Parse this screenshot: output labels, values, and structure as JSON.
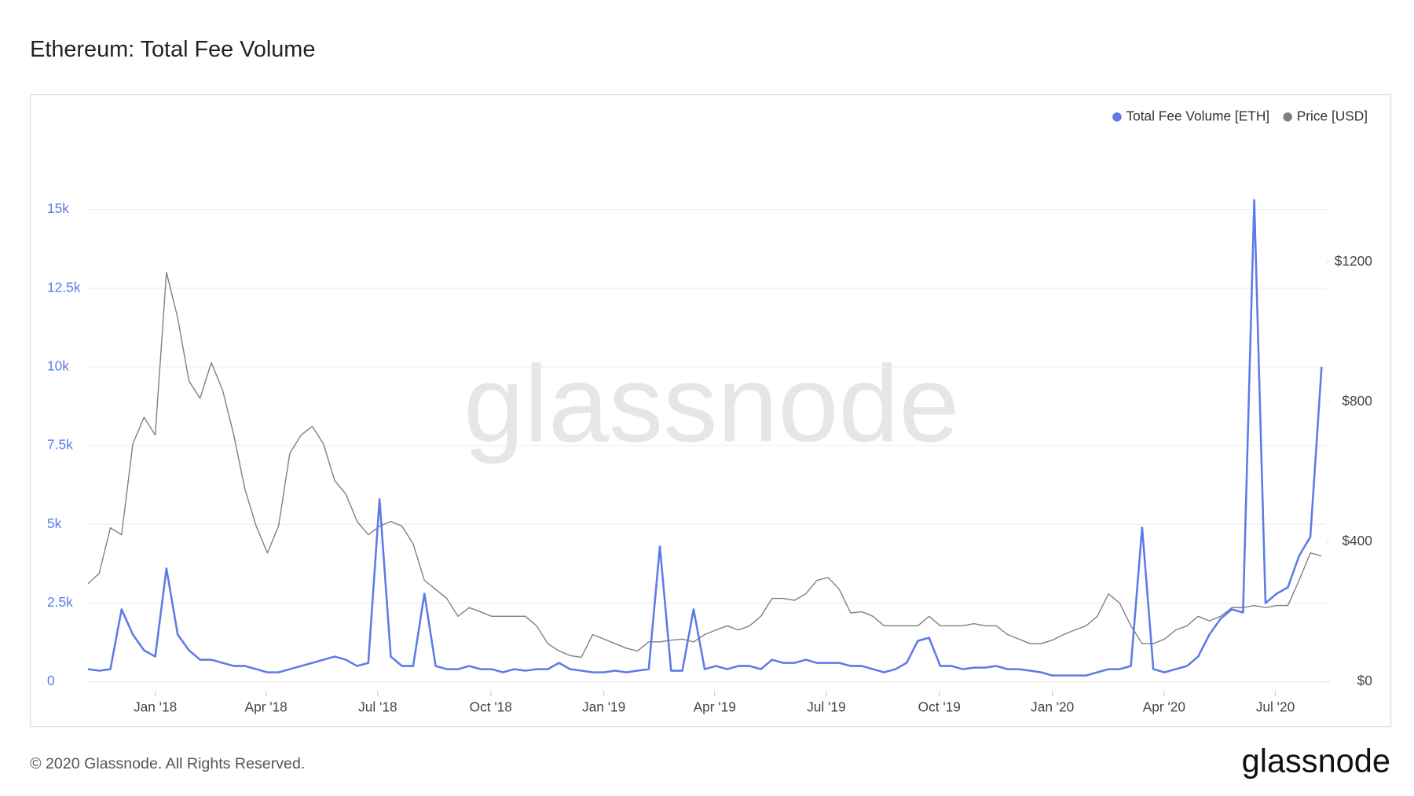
{
  "chart_data": {
    "type": "line",
    "title": "Ethereum: Total Fee Volume",
    "watermark": "glassnode",
    "footer": "© 2020 Glassnode. All Rights Reserved.",
    "brand": "glassnode",
    "legend_position": "top-right",
    "grid": true,
    "x": [
      2017.85,
      2017.875,
      2017.9,
      2017.925,
      2017.95,
      2017.975,
      2018.0,
      2018.025,
      2018.05,
      2018.075,
      2018.1,
      2018.125,
      2018.15,
      2018.175,
      2018.2,
      2018.225,
      2018.25,
      2018.275,
      2018.3,
      2018.325,
      2018.35,
      2018.375,
      2018.4,
      2018.425,
      2018.45,
      2018.475,
      2018.5,
      2018.525,
      2018.55,
      2018.575,
      2018.6,
      2018.625,
      2018.65,
      2018.675,
      2018.7,
      2018.725,
      2018.75,
      2018.775,
      2018.8,
      2018.825,
      2018.85,
      2018.875,
      2018.9,
      2018.925,
      2018.95,
      2018.975,
      2019.0,
      2019.025,
      2019.05,
      2019.075,
      2019.1,
      2019.125,
      2019.15,
      2019.175,
      2019.2,
      2019.225,
      2019.25,
      2019.275,
      2019.3,
      2019.325,
      2019.35,
      2019.375,
      2019.4,
      2019.425,
      2019.45,
      2019.475,
      2019.5,
      2019.525,
      2019.55,
      2019.575,
      2019.6,
      2019.625,
      2019.65,
      2019.675,
      2019.7,
      2019.725,
      2019.75,
      2019.775,
      2019.8,
      2019.825,
      2019.85,
      2019.875,
      2019.9,
      2019.925,
      2019.95,
      2019.975,
      2020.0,
      2020.025,
      2020.05,
      2020.075,
      2020.1,
      2020.125,
      2020.15,
      2020.175,
      2020.2,
      2020.225,
      2020.25,
      2020.275,
      2020.3,
      2020.325,
      2020.35,
      2020.375,
      2020.4,
      2020.425,
      2020.45,
      2020.475,
      2020.5,
      2020.525,
      2020.55,
      2020.575,
      2020.6
    ],
    "xlim": [
      2017.85,
      2020.61
    ],
    "xticks": [
      {
        "value": 2018.0,
        "label": "Jan '18"
      },
      {
        "value": 2018.247,
        "label": "Apr '18"
      },
      {
        "value": 2018.496,
        "label": "Jul '18"
      },
      {
        "value": 2018.748,
        "label": "Oct '18"
      },
      {
        "value": 2019.0,
        "label": "Jan '19"
      },
      {
        "value": 2019.247,
        "label": "Apr '19"
      },
      {
        "value": 2019.496,
        "label": "Jul '19"
      },
      {
        "value": 2019.748,
        "label": "Oct '19"
      },
      {
        "value": 2020.0,
        "label": "Jan '20"
      },
      {
        "value": 2020.249,
        "label": "Apr '20"
      },
      {
        "value": 2020.497,
        "label": "Jul '20"
      }
    ],
    "ylim": [
      0,
      17535
    ],
    "yticks": [
      0,
      {
        "value": 2500,
        "label": "2.5k"
      },
      {
        "value": 5000,
        "label": "5k"
      },
      {
        "value": 7500,
        "label": "7.5k"
      },
      {
        "value": 10000,
        "label": "10k"
      },
      {
        "value": 12500,
        "label": "12.5k"
      },
      {
        "value": 15000,
        "label": "15k"
      }
    ],
    "y2lim": [
      0,
      1578
    ],
    "y2ticks": [
      {
        "value": 0,
        "label": "$0"
      },
      {
        "value": 400,
        "label": "$400"
      },
      {
        "value": 800,
        "label": "$800"
      },
      {
        "value": 1200,
        "label": "$1200"
      }
    ],
    "series": [
      {
        "name": "Total Fee Volume [ETH]",
        "color": "#5b7be6",
        "axis": "y",
        "values": [
          400,
          350,
          400,
          2300,
          1500,
          1000,
          800,
          3600,
          1500,
          1000,
          700,
          700,
          600,
          500,
          500,
          400,
          300,
          300,
          400,
          500,
          600,
          700,
          800,
          700,
          500,
          600,
          5800,
          800,
          500,
          500,
          2800,
          500,
          400,
          400,
          500,
          400,
          400,
          300,
          400,
          350,
          400,
          400,
          600,
          400,
          350,
          300,
          300,
          350,
          300,
          350,
          400,
          4300,
          350,
          350,
          2300,
          400,
          500,
          400,
          500,
          500,
          400,
          700,
          600,
          600,
          700,
          600,
          600,
          600,
          500,
          500,
          400,
          300,
          400,
          600,
          1300,
          1400,
          500,
          500,
          400,
          450,
          450,
          500,
          400,
          400,
          350,
          300,
          200,
          200,
          200,
          200,
          300,
          400,
          400,
          500,
          4900,
          400,
          300,
          400,
          500,
          800,
          1500,
          2000,
          2300,
          2200,
          15300,
          2500,
          2800,
          3000,
          4000,
          4600,
          10000
        ]
      },
      {
        "name": "Price [USD]",
        "color": "#7f7f7f",
        "axis": "y2",
        "values": [
          280,
          310,
          440,
          420,
          680,
          756,
          705,
          1170,
          1040,
          860,
          810,
          912,
          834,
          705,
          550,
          445,
          368,
          445,
          653,
          705,
          730,
          680,
          575,
          536,
          458,
          420,
          445,
          458,
          445,
          394,
          290,
          264,
          238,
          187,
          212,
          200,
          187,
          187,
          187,
          187,
          160,
          109,
          88,
          75,
          70,
          135,
          122,
          109,
          96,
          88,
          114,
          114,
          119,
          122,
          114,
          135,
          148,
          160,
          148,
          160,
          187,
          238,
          238,
          233,
          251,
          290,
          298,
          264,
          197,
          200,
          187,
          160,
          160,
          160,
          160,
          187,
          160,
          160,
          160,
          166,
          160,
          160,
          135,
          122,
          109,
          109,
          119,
          135,
          148,
          160,
          187,
          251,
          225,
          160,
          109,
          109,
          122,
          148,
          160,
          187,
          174,
          187,
          212,
          212,
          218,
          212,
          218,
          218,
          290,
          368,
          360
        ]
      }
    ]
  }
}
